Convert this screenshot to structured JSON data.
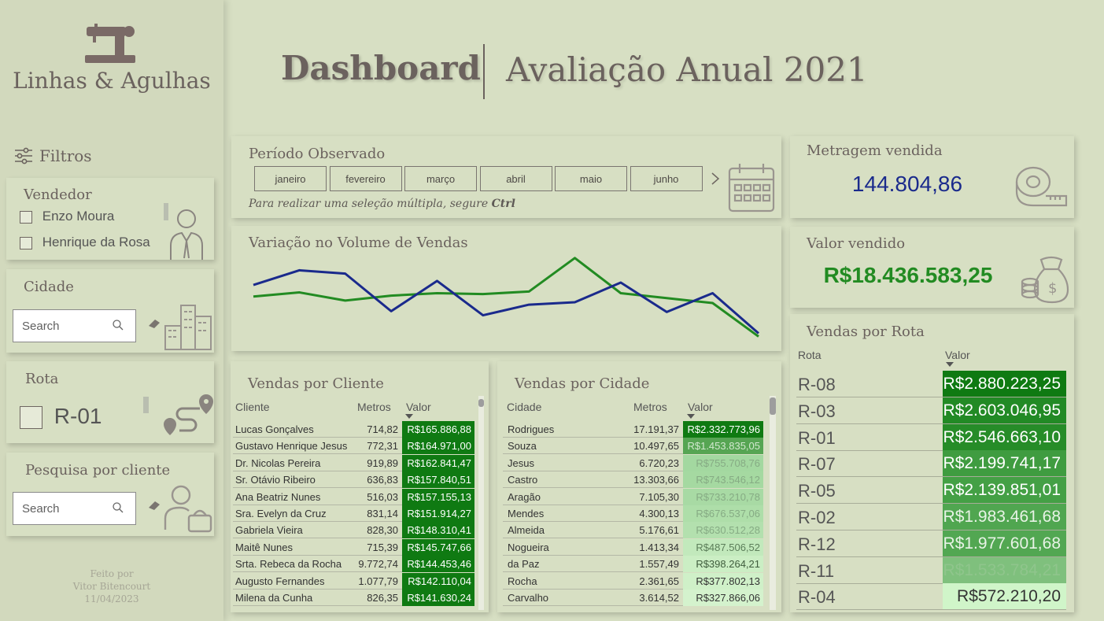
{
  "brand": {
    "name": "Linhas & Agulhas",
    "icon": "sewing-machine-icon"
  },
  "header": {
    "title": "Dashboard",
    "subtitle": "Avaliação Anual 2021"
  },
  "filters": {
    "title": "Filtros",
    "vendedor": {
      "title": "Vendedor",
      "options": [
        "Enzo Moura",
        "Henrique da Rosa"
      ]
    },
    "cidade": {
      "title": "Cidade",
      "search_placeholder": "Search"
    },
    "rota": {
      "title": "Rota",
      "option": "R-01"
    },
    "cliente": {
      "title": "Pesquisa por cliente",
      "search_placeholder": "Search"
    }
  },
  "footer": {
    "line1": "Feito por",
    "line2": "Vitor Bitencourt",
    "line3": "11/04/2023"
  },
  "periodo": {
    "title": "Período Observado",
    "months": [
      "janeiro",
      "fevereiro",
      "março",
      "abril",
      "maio",
      "junho"
    ],
    "hint_prefix": "Para realizar uma seleção múltipla, segure ",
    "hint_key": "Ctrl"
  },
  "kpis": {
    "metragem": {
      "title": "Metragem vendida",
      "value": "144.804,86"
    },
    "valor": {
      "title": "Valor vendido",
      "value": "R$18.436.583,25"
    }
  },
  "colors": {
    "blue": "#1a2a8c",
    "green": "#228b22",
    "dark_green": "#0f7a12"
  },
  "chart_data": {
    "type": "line",
    "title": "Variação no Volume de Vendas",
    "x": [
      1,
      2,
      3,
      4,
      5,
      6,
      7,
      8,
      9,
      10,
      11,
      12
    ],
    "ylim": [
      0,
      100
    ],
    "series": [
      {
        "color": "#1a2a8c",
        "values": [
          72,
          90,
          86,
          40,
          77,
          35,
          48,
          51,
          75,
          39,
          62,
          13
        ]
      },
      {
        "color": "#228b22",
        "values": [
          58,
          63,
          53,
          59,
          62,
          61,
          64,
          105,
          62,
          56,
          50,
          9
        ]
      }
    ]
  },
  "clientes": {
    "title": "Vendas por Cliente",
    "headers": {
      "nome": "Cliente",
      "metros": "Metros",
      "valor": "Valor"
    },
    "rows": [
      {
        "nome": "Lucas Gonçalves",
        "metros": "714,82",
        "valor": "R$165.886,88"
      },
      {
        "nome": "Gustavo Henrique Jesus",
        "metros": "772,31",
        "valor": "R$164.971,00"
      },
      {
        "nome": "Dr. Nicolas Pereira",
        "metros": "919,89",
        "valor": "R$162.841,47"
      },
      {
        "nome": "Sr. Otávio Ribeiro",
        "metros": "636,83",
        "valor": "R$157.840,51"
      },
      {
        "nome": "Ana Beatriz Nunes",
        "metros": "516,03",
        "valor": "R$157.155,13"
      },
      {
        "nome": "Sra. Evelyn da Cruz",
        "metros": "831,14",
        "valor": "R$151.914,27"
      },
      {
        "nome": "Gabriela Vieira",
        "metros": "828,30",
        "valor": "R$148.310,41"
      },
      {
        "nome": "Maitê Nunes",
        "metros": "715,39",
        "valor": "R$145.747,66"
      },
      {
        "nome": "Srta. Rebeca da Rocha",
        "metros": "9.772,74",
        "valor": "R$144.453,46"
      },
      {
        "nome": "Augusto Fernandes",
        "metros": "1.077,79",
        "valor": "R$142.110,04"
      },
      {
        "nome": "Milena da Cunha",
        "metros": "826,35",
        "valor": "R$141.630,24"
      }
    ]
  },
  "cidades": {
    "title": "Vendas por Cidade",
    "headers": {
      "nome": "Cidade",
      "metros": "Metros",
      "valor": "Valor"
    },
    "rows": [
      {
        "nome": "Rodrigues",
        "metros": "17.191,37",
        "valor": "R$2.332.773,96",
        "bg": "#0f7a12",
        "fg": "#ffffff"
      },
      {
        "nome": "Souza",
        "metros": "10.497,65",
        "valor": "R$1.453.835,05",
        "bg": "#56a553",
        "fg": "#d2e8cf"
      },
      {
        "nome": "Jesus",
        "metros": "6.720,23",
        "valor": "R$755.708,76",
        "bg": "#a3d8a0",
        "fg": "#86ab84"
      },
      {
        "nome": "Castro",
        "metros": "13.303,66",
        "valor": "R$743.546,12",
        "bg": "#a5d9a1",
        "fg": "#86ab84"
      },
      {
        "nome": "Aragão",
        "metros": "7.105,30",
        "valor": "R$733.210,78",
        "bg": "#a8daa4",
        "fg": "#86ab84"
      },
      {
        "nome": "Mendes",
        "metros": "4.300,13",
        "valor": "R$676.537,06",
        "bg": "#aedea9",
        "fg": "#86ab84"
      },
      {
        "nome": "Almeida",
        "metros": "5.176,61",
        "valor": "R$630.512,28",
        "bg": "#b3e0ae",
        "fg": "#86ab84"
      },
      {
        "nome": "Nogueira",
        "metros": "1.413,34",
        "valor": "R$487.506,52",
        "bg": "#c2e9bc",
        "fg": "#5b7d59"
      },
      {
        "nome": "da Paz",
        "metros": "1.557,49",
        "valor": "R$398.264,21",
        "bg": "#cbeec4",
        "fg": "#3f5c3d"
      },
      {
        "nome": "Rocha",
        "metros": "2.361,65",
        "valor": "R$377.802,13",
        "bg": "#cff0c8",
        "fg": "#333333"
      },
      {
        "nome": "Carvalho",
        "metros": "3.614,52",
        "valor": "R$327.866,06",
        "bg": "#d4f2cd",
        "fg": "#333333"
      }
    ]
  },
  "rotas": {
    "title": "Vendas por Rota",
    "headers": {
      "nome": "Rota",
      "valor": "Valor"
    },
    "rows": [
      {
        "nome": "R-08",
        "valor": "R$2.880.223,25",
        "bg": "#0f7a12",
        "fg": "#ffffff"
      },
      {
        "nome": "R-03",
        "valor": "R$2.603.046,95",
        "bg": "#228a25",
        "fg": "#ffffff"
      },
      {
        "nome": "R-01",
        "valor": "R$2.546.663,10",
        "bg": "#268c28",
        "fg": "#ffffff"
      },
      {
        "nome": "R-07",
        "valor": "R$2.199.741,17",
        "bg": "#3f9c40",
        "fg": "#ffffff"
      },
      {
        "nome": "R-05",
        "valor": "R$2.139.851,01",
        "bg": "#44a045",
        "fg": "#ffffff"
      },
      {
        "nome": "R-02",
        "valor": "R$1.983.461,68",
        "bg": "#50a650",
        "fg": "#e8f3e6"
      },
      {
        "nome": "R-12",
        "valor": "R$1.977.601,68",
        "bg": "#52a752",
        "fg": "#e8f3e6"
      },
      {
        "nome": "R-11",
        "valor": "R$1.533.784,21",
        "bg": "#7fc07d",
        "fg": "#8fc58c"
      },
      {
        "nome": "R-04",
        "valor": "R$572.210,20",
        "bg": "#d0f5c9",
        "fg": "#333333"
      }
    ]
  }
}
